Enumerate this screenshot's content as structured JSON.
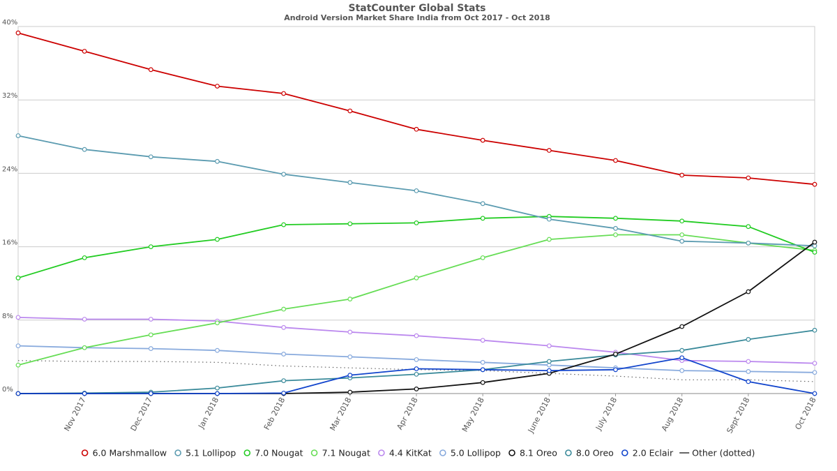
{
  "chart_data": {
    "type": "line",
    "title": "StatCounter Global Stats",
    "subtitle": "Android Version Market Share India from Oct 2017 - Oct 2018",
    "ylim": [
      0,
      40
    ],
    "yticks": [
      0,
      8,
      16,
      24,
      32,
      40
    ],
    "ytick_labels": [
      "0%",
      "8%",
      "16%",
      "24%",
      "32%",
      "40%"
    ],
    "grid": true,
    "legend_position": "bottom",
    "x": [
      "Oct 2017",
      "Nov 2017",
      "Dec 2017",
      "Jan 2018",
      "Feb 2018",
      "Mar 2018",
      "Apr 2018",
      "May 2018",
      "June 2018",
      "July 2018",
      "Aug 2018",
      "Sept 2018",
      "Oct 2018"
    ],
    "x_tick_labels": [
      "Nov 2017",
      "Dec 2017",
      "Jan 2018",
      "Feb 2018",
      "Mar 2018",
      "Apr 2018",
      "May 2018",
      "June 2018",
      "July 2018",
      "Aug 2018",
      "Sept 2018",
      "Oct 2018"
    ],
    "series": [
      {
        "name": "6.0 Marshmallow",
        "color": "#cc0000",
        "values": [
          39.3,
          37.3,
          35.3,
          33.5,
          32.7,
          30.8,
          28.8,
          27.6,
          26.5,
          25.4,
          23.8,
          23.5,
          22.8
        ]
      },
      {
        "name": "5.1 Lollipop",
        "color": "#5b9bb0",
        "values": [
          28.1,
          26.6,
          25.8,
          25.3,
          23.9,
          23.0,
          22.1,
          20.7,
          19.0,
          18.0,
          16.6,
          16.4,
          16.1
        ]
      },
      {
        "name": "7.0 Nougat",
        "color": "#22cc22",
        "values": [
          12.6,
          14.8,
          16.0,
          16.8,
          18.4,
          18.5,
          18.6,
          19.1,
          19.3,
          19.1,
          18.8,
          18.2,
          15.4
        ]
      },
      {
        "name": "7.1 Nougat",
        "color": "#66dd55",
        "values": [
          3.1,
          5.0,
          6.4,
          7.7,
          9.2,
          10.3,
          12.6,
          14.8,
          16.8,
          17.3,
          17.3,
          16.4,
          15.6
        ]
      },
      {
        "name": "4.4 KitKat",
        "color": "#bb88ee",
        "values": [
          8.3,
          8.1,
          8.1,
          7.9,
          7.2,
          6.7,
          6.3,
          5.8,
          5.2,
          4.5,
          3.6,
          3.5,
          3.3
        ]
      },
      {
        "name": "5.0 Lollipop",
        "color": "#88aadd",
        "values": [
          5.2,
          5.0,
          4.9,
          4.7,
          4.3,
          4.0,
          3.7,
          3.4,
          3.1,
          2.8,
          2.5,
          2.4,
          2.3
        ]
      },
      {
        "name": "8.1 Oreo",
        "color": "#111111",
        "values": [
          0.0,
          0.0,
          0.0,
          0.0,
          0.0,
          0.15,
          0.5,
          1.2,
          2.2,
          4.3,
          7.3,
          11.1,
          16.5
        ]
      },
      {
        "name": "8.0 Oreo",
        "color": "#3a8a9a",
        "values": [
          0.0,
          0.05,
          0.15,
          0.6,
          1.4,
          1.7,
          2.1,
          2.6,
          3.5,
          4.2,
          4.7,
          5.9,
          6.9
        ]
      },
      {
        "name": "2.0 Eclair",
        "color": "#1144cc",
        "values": [
          0.0,
          0.0,
          0.0,
          0.0,
          0.05,
          2.0,
          2.7,
          2.6,
          2.5,
          2.6,
          3.9,
          1.3,
          0.0
        ]
      },
      {
        "name": "Other (dotted)",
        "color": "#666666",
        "dotted": true,
        "values": [
          3.6,
          3.5,
          3.5,
          3.4,
          3.0,
          2.8,
          2.6,
          2.5,
          2.2,
          1.9,
          1.5,
          1.5,
          1.3
        ]
      }
    ]
  }
}
